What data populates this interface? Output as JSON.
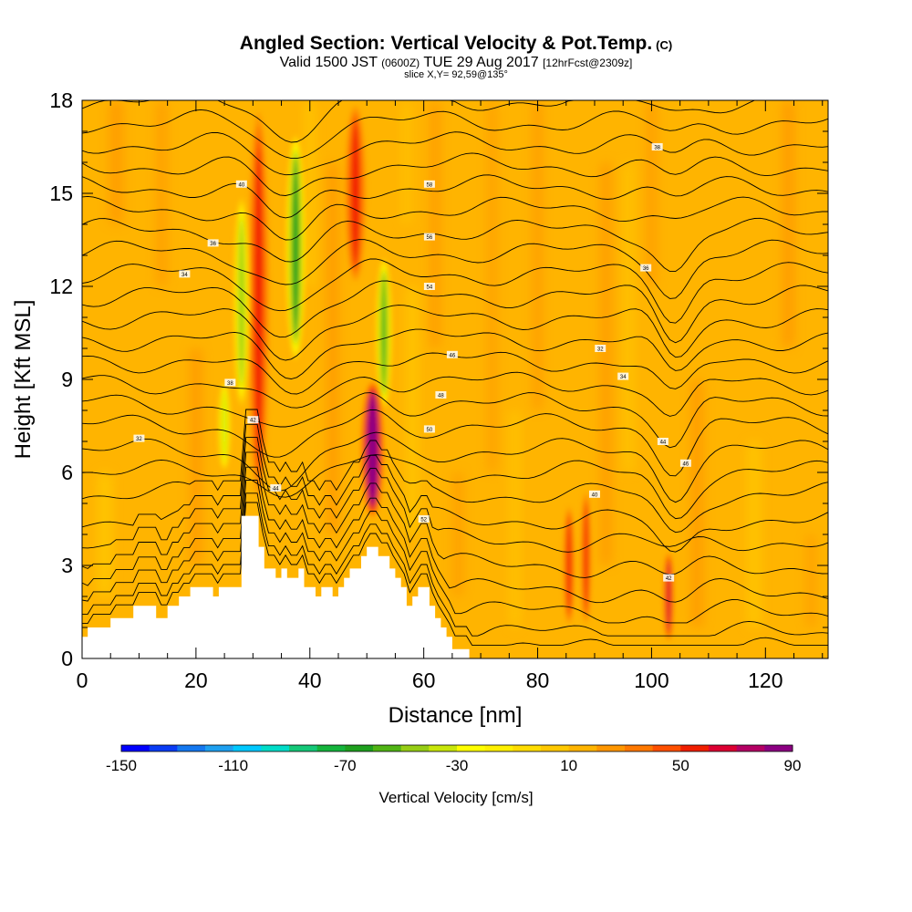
{
  "title": {
    "main": "Angled Section: Vertical Velocity & Pot.Temp.",
    "main_suffix": "(C)",
    "subtitle_a": "Valid 1500 JST",
    "subtitle_b": "(0600Z)",
    "subtitle_c": "TUE 29 Aug 2017",
    "subtitle_d": "[12hrFcst@2309z]",
    "slice": "slice X,Y= 92,59@135°"
  },
  "chart_data": {
    "type": "heatmap",
    "xlabel": "Distance [nm]",
    "ylabel": "Height [Kft MSL]",
    "xlim": [
      0,
      131
    ],
    "ylim": [
      0,
      18
    ],
    "x_ticks": [
      0,
      20,
      40,
      60,
      80,
      100,
      120
    ],
    "y_ticks": [
      0,
      3,
      6,
      9,
      12,
      15,
      18
    ],
    "colorbar": {
      "label": "Vertical Velocity [cm/s]",
      "min": -150,
      "max": 90,
      "step": 10,
      "tick_labels": [
        "-150",
        "-110",
        "-70",
        "-30",
        "10",
        "50",
        "90"
      ],
      "colors": [
        "#0000ff",
        "#0a3cf5",
        "#1478f0",
        "#1ea0f0",
        "#00c8ff",
        "#00dcc8",
        "#14c878",
        "#14b43c",
        "#1ea01e",
        "#50b414",
        "#96cd14",
        "#c8e60a",
        "#ffff00",
        "#fff000",
        "#ffdc00",
        "#ffc800",
        "#ffb400",
        "#ff9600",
        "#ff7800",
        "#ff5000",
        "#f01e00",
        "#dc0032",
        "#b40064",
        "#8c0082"
      ]
    },
    "background_value": 10,
    "features": [
      {
        "kind": "updraft",
        "x": 31,
        "y_bottom": 4.8,
        "y_top": 18,
        "w": 3.5,
        "peak_cms": 50
      },
      {
        "kind": "downdraft",
        "x": 37.5,
        "y_bottom": 9.5,
        "y_top": 17,
        "w": 3,
        "peak_cms": -70
      },
      {
        "kind": "downdraft",
        "x": 28,
        "y_bottom": 8,
        "y_top": 15,
        "w": 2.5,
        "peak_cms": -50
      },
      {
        "kind": "updraft",
        "x": 48,
        "y_bottom": 12,
        "y_top": 18,
        "w": 3.5,
        "peak_cms": 50
      },
      {
        "kind": "downdraft",
        "x": 53,
        "y_bottom": 8,
        "y_top": 13,
        "w": 2.5,
        "peak_cms": -60
      },
      {
        "kind": "updraft",
        "x": 51,
        "y_bottom": 4.5,
        "y_top": 9,
        "w": 3.5,
        "peak_cms": 90
      },
      {
        "kind": "updraft",
        "x": 85.5,
        "y_bottom": 1,
        "y_top": 5,
        "w": 1.8,
        "peak_cms": 50
      },
      {
        "kind": "updraft",
        "x": 88.5,
        "y_bottom": 1,
        "y_top": 5.5,
        "w": 1.6,
        "peak_cms": 50
      },
      {
        "kind": "updraft",
        "x": 103,
        "y_bottom": 0.5,
        "y_top": 3.5,
        "w": 1.6,
        "peak_cms": 60
      },
      {
        "kind": "downdraft",
        "x": 25,
        "y_bottom": 6,
        "y_top": 9,
        "w": 2,
        "peak_cms": -40
      }
    ],
    "terrain": {
      "x": [
        0,
        1,
        1,
        5,
        5,
        9,
        9,
        13,
        13,
        15,
        15,
        17,
        17,
        19,
        19,
        23,
        23,
        24,
        24,
        28,
        28,
        31,
        31,
        32,
        32,
        34,
        34,
        35,
        35,
        36,
        36,
        38,
        38,
        39,
        39,
        41,
        41,
        42,
        42,
        44,
        44,
        45,
        45,
        46,
        46,
        47,
        47,
        49,
        49,
        50,
        50,
        52,
        52,
        54,
        54,
        55,
        55,
        56,
        56,
        57,
        57,
        58,
        58,
        59,
        59,
        61,
        61,
        62,
        62,
        63,
        63,
        64,
        64,
        65,
        65,
        66,
        66,
        68,
        68,
        71,
        71,
        131
      ],
      "y": [
        0.7,
        0.7,
        1.0,
        1.0,
        1.3,
        1.3,
        1.7,
        1.7,
        1.3,
        1.3,
        1.7,
        1.7,
        2.0,
        2.0,
        2.3,
        2.3,
        2.0,
        2.0,
        2.3,
        2.3,
        4.6,
        4.6,
        3.6,
        3.6,
        2.9,
        2.9,
        2.6,
        2.6,
        2.9,
        2.9,
        2.6,
        2.6,
        2.9,
        2.9,
        2.3,
        2.3,
        2.0,
        2.0,
        2.3,
        2.3,
        2.0,
        2.0,
        2.3,
        2.3,
        2.6,
        2.6,
        2.9,
        2.9,
        3.3,
        3.3,
        3.6,
        3.6,
        3.3,
        3.3,
        2.9,
        2.9,
        2.6,
        2.6,
        2.3,
        2.3,
        1.7,
        1.7,
        2.0,
        2.0,
        2.3,
        2.3,
        1.7,
        1.7,
        1.3,
        1.3,
        1.0,
        1.0,
        0.7,
        0.7,
        0.3,
        0.3,
        0.3,
        0.3,
        0,
        0,
        0,
        0
      ]
    },
    "contours": {
      "label": "Potential temperature",
      "base_height": [
        0.3,
        0.8,
        1.5,
        2.2,
        3.0,
        3.8,
        4.5,
        5.3,
        6.0,
        6.7,
        7.5,
        8.2,
        8.9,
        9.6,
        10.3,
        11.0,
        11.7,
        12.4,
        13.1,
        13.8,
        14.5,
        15.2,
        15.9,
        16.6,
        17.3,
        18.0
      ],
      "tick_labels": [
        "32",
        "34",
        "36",
        "38",
        "40",
        "42",
        "44",
        "46",
        "48",
        "50",
        "52",
        "54",
        "56",
        "58"
      ]
    }
  }
}
